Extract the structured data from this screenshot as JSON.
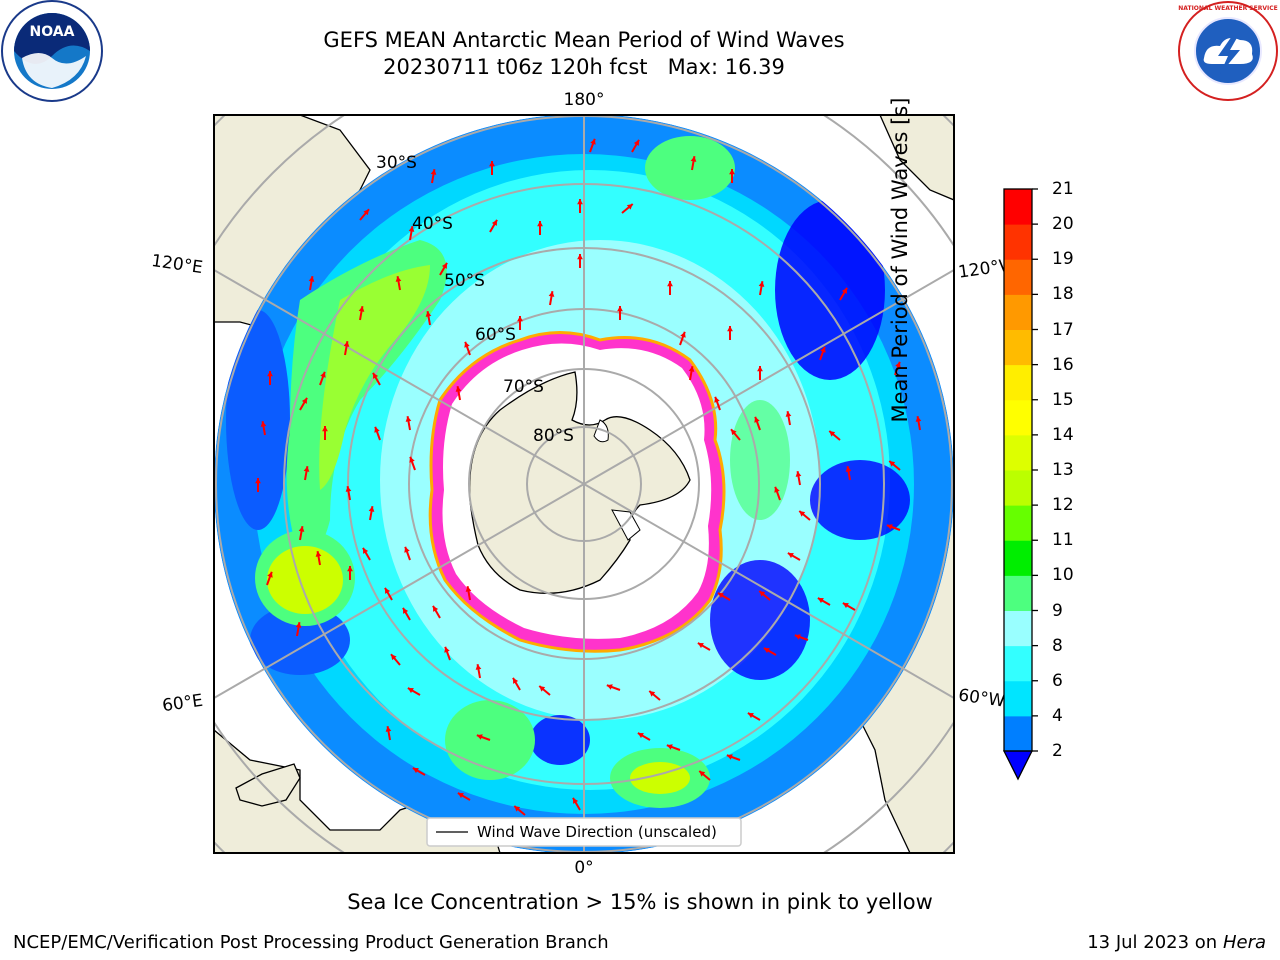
{
  "title": {
    "line1": "GEFS MEAN Antarctic Mean Period of Wind Waves",
    "line2": "20230711 t06z 120h fcst   Max: 16.39"
  },
  "map": {
    "projection": "south-polar-stereographic",
    "longitude_labels": {
      "top": "180°",
      "bottom": "0°",
      "left_upper": "120°E",
      "right_upper": "120°W",
      "left_lower": "60°E",
      "right_lower": "60°W"
    },
    "latitude_labels": [
      "30°S",
      "40°S",
      "50°S",
      "60°S",
      "70°S",
      "80°S"
    ],
    "legend_label": "Wind Wave Direction (unscaled)",
    "land_color": "#efedda",
    "ice_edge_colors": [
      "#ff33cc",
      "#ffaa00",
      "#ffff00"
    ],
    "arrow_color": "#ff0000"
  },
  "colorbar": {
    "label": "Mean Period of Wind Waves [s]",
    "ticks": [
      "2",
      "4",
      "6",
      "8",
      "9",
      "10",
      "11",
      "12",
      "13",
      "14",
      "15",
      "16",
      "17",
      "18",
      "19",
      "20",
      "21"
    ],
    "colors": [
      "#007fff",
      "#00e5ff",
      "#33ffff",
      "#99ffff",
      "#4dff7f",
      "#00ee00",
      "#66ff00",
      "#bbff00",
      "#ddff00",
      "#ffff00",
      "#ffee00",
      "#ffbb00",
      "#ff9900",
      "#ff6600",
      "#ff3300",
      "#ff0000"
    ],
    "under_color": "#0000ff"
  },
  "caption": "Sea Ice Concentration > 15% is shown in pink to yellow",
  "footer": {
    "left": "NCEP/EMC/Verification Post Processing Product Generation Branch",
    "right_date": "13 Jul 2023 on ",
    "right_host": "Hera"
  },
  "logos": {
    "noaa_text": "NOAA",
    "nws_text": "NATIONAL WEATHER SERVICE"
  }
}
